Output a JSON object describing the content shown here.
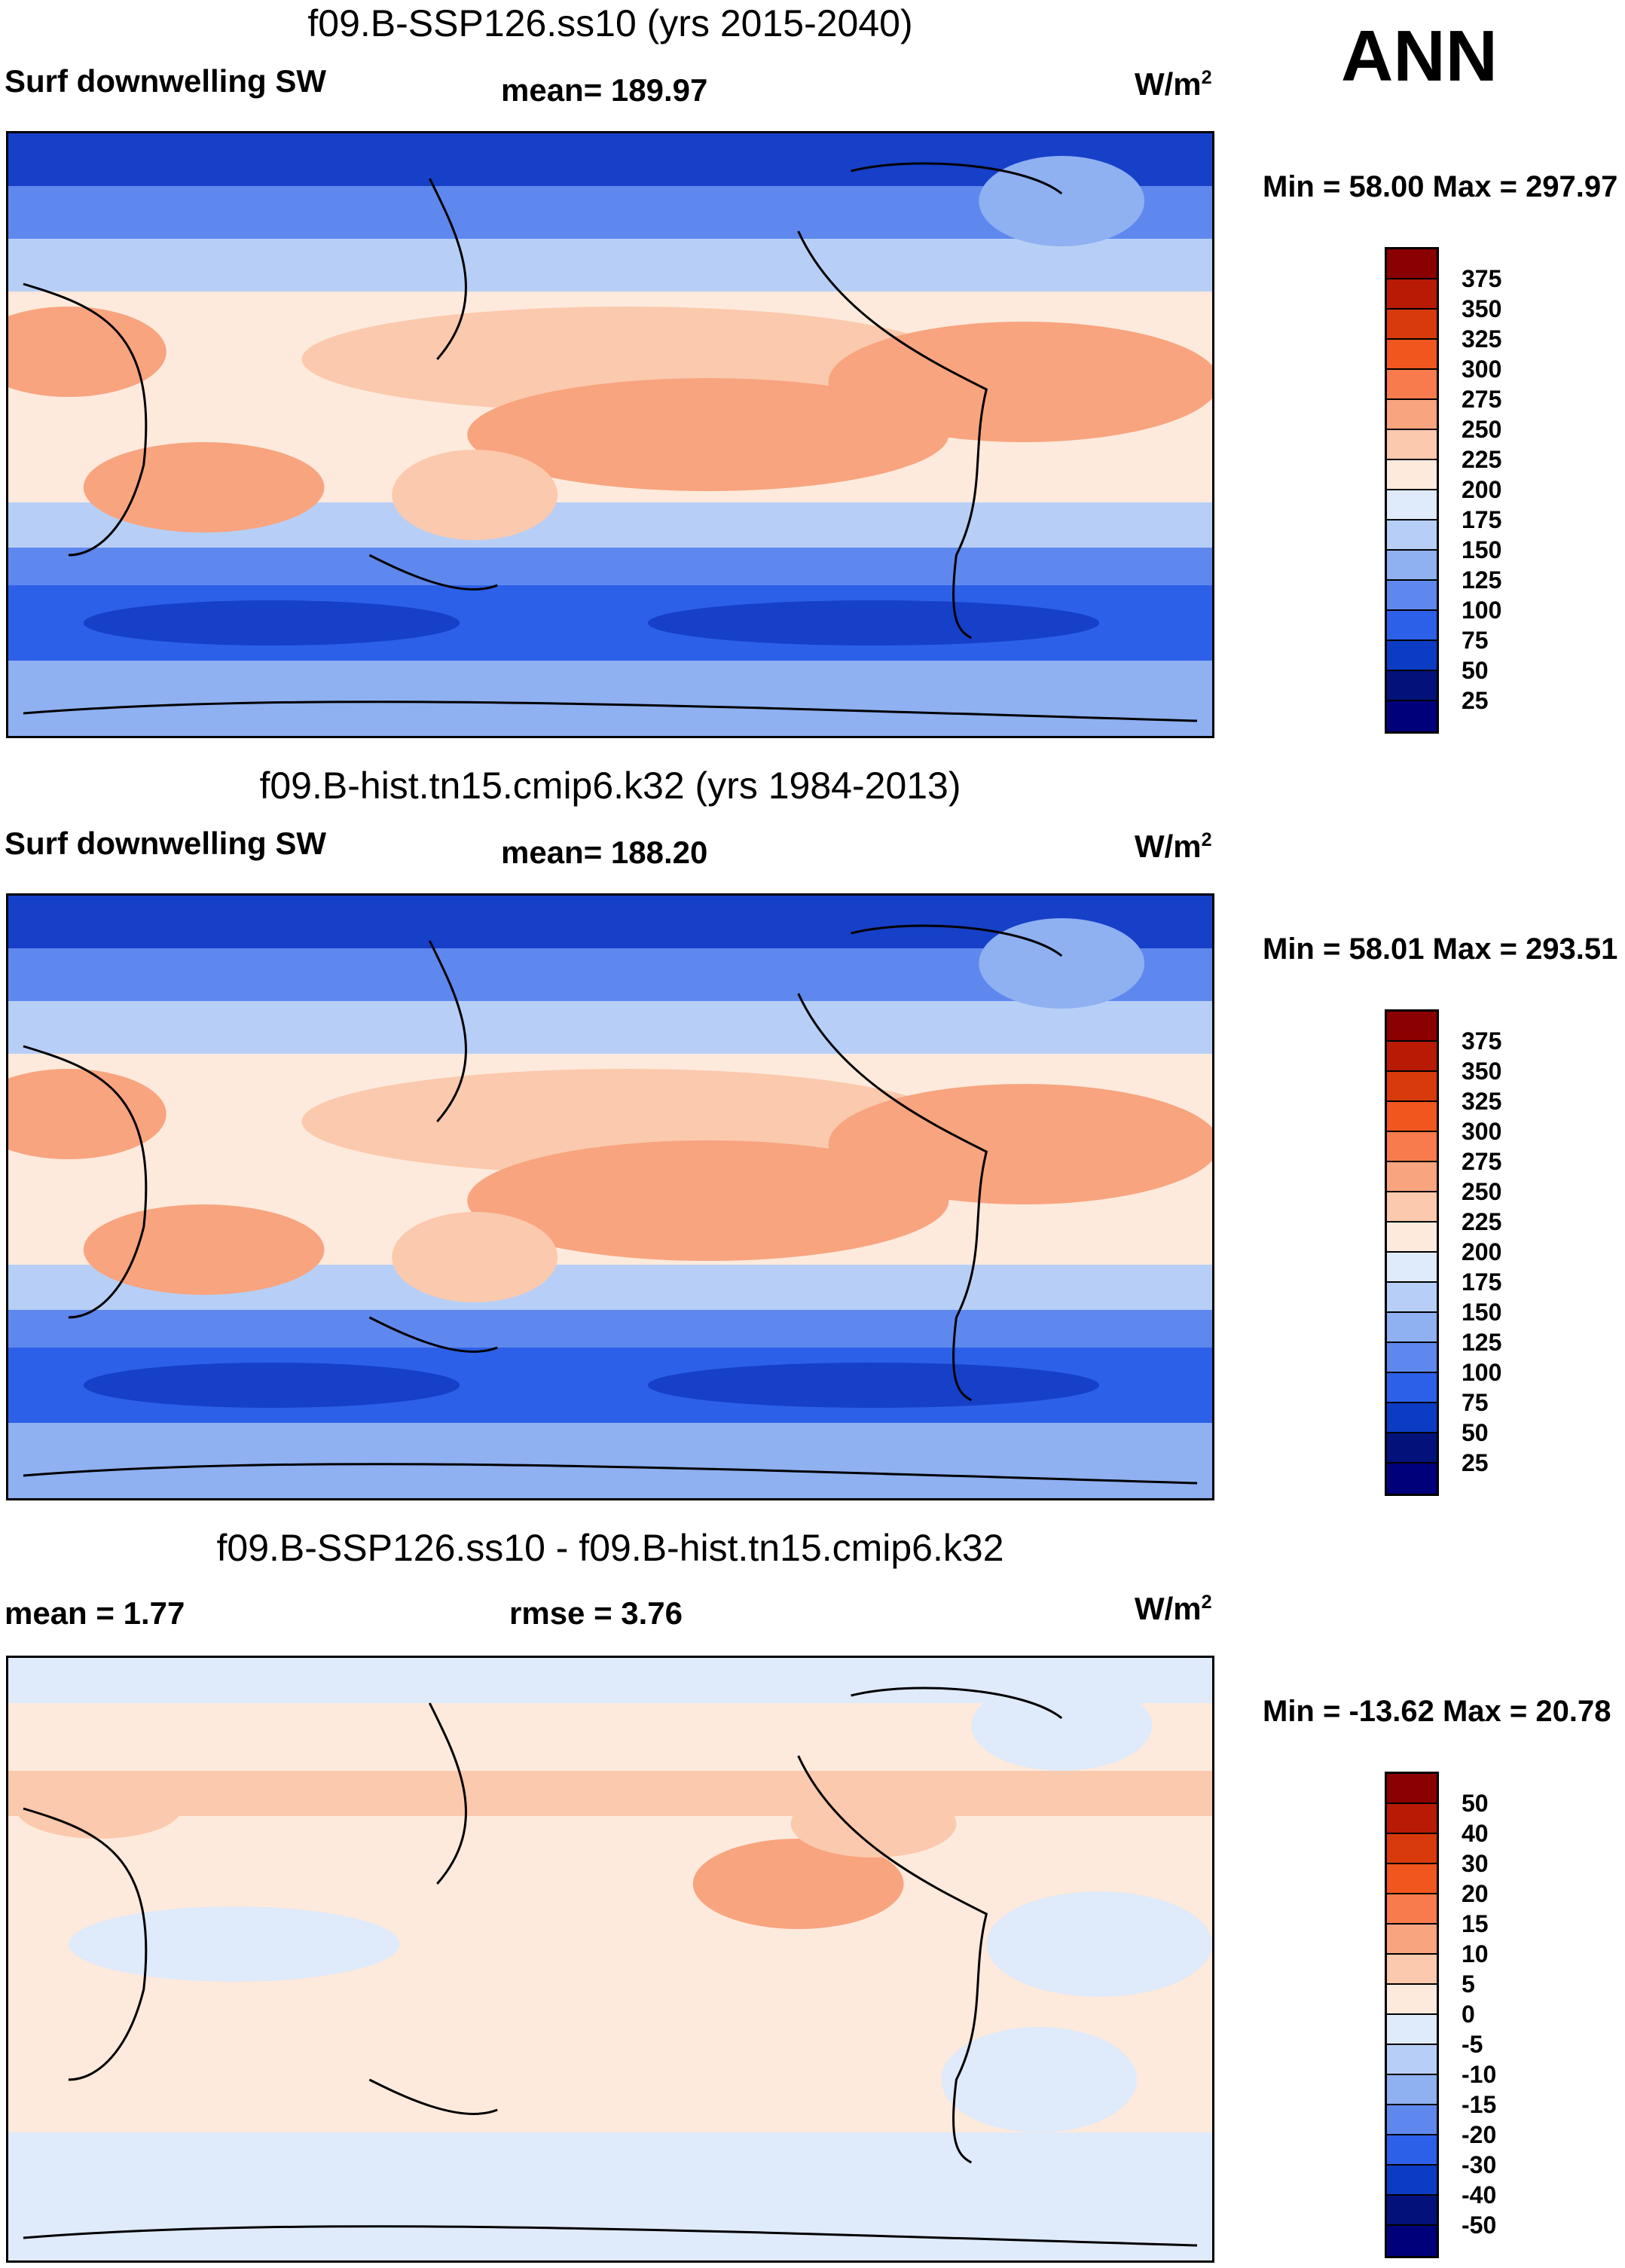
{
  "season": "ANN",
  "panels": [
    {
      "title": "f09.B-SSP126.ss10 (yrs 2015-2040)",
      "left_label": "Surf downwelling SW",
      "center_label": "mean= 189.97",
      "units": "W/m",
      "units_sup": "2",
      "minmax": "Min =  58.00 Max = 297.97",
      "colorbar": {
        "levels": [
          "375",
          "350",
          "325",
          "300",
          "275",
          "250",
          "225",
          "200",
          "175",
          "150",
          "125",
          "100",
          "75",
          "50",
          "25"
        ],
        "colors": [
          "#8b0000",
          "#b81a05",
          "#d93a0c",
          "#f0561d",
          "#f77b4c",
          "#f8a47f",
          "#fbc9ad",
          "#fdeadc",
          "#dfeafa",
          "#b7cff6",
          "#8fb0f1",
          "#5f88ee",
          "#2d60e8",
          "#0d3cc4",
          "#03127a",
          "#00007a"
        ]
      },
      "map_legend_names": {
        "ocean_cold": "#2a5ee8",
        "ocean_mid": "#6a93ef",
        "warm": "#f8b395",
        "hot": "#f78c62"
      }
    },
    {
      "title": "f09.B-hist.tn15.cmip6.k32 (yrs 1984-2013)",
      "left_label": "Surf downwelling SW",
      "center_label": "mean= 188.20",
      "units": "W/m",
      "units_sup": "2",
      "minmax": "Min =  58.01 Max = 293.51",
      "colorbar": {
        "levels": [
          "375",
          "350",
          "325",
          "300",
          "275",
          "250",
          "225",
          "200",
          "175",
          "150",
          "125",
          "100",
          "75",
          "50",
          "25"
        ],
        "colors": [
          "#8b0000",
          "#b81a05",
          "#d93a0c",
          "#f0561d",
          "#f77b4c",
          "#f8a47f",
          "#fbc9ad",
          "#fdeadc",
          "#dfeafa",
          "#b7cff6",
          "#8fb0f1",
          "#5f88ee",
          "#2d60e8",
          "#0d3cc4",
          "#03127a",
          "#00007a"
        ]
      }
    },
    {
      "title": "f09.B-SSP126.ss10 - f09.B-hist.tn15.cmip6.k32",
      "left_label": "mean =   1.77",
      "center_label": "rmse =   3.76",
      "units": "W/m",
      "units_sup": "2",
      "minmax": "Min = -13.62 Max =  20.78",
      "colorbar": {
        "levels": [
          "50",
          "40",
          "30",
          "20",
          "15",
          "10",
          "5",
          "0",
          "-5",
          "-10",
          "-15",
          "-20",
          "-30",
          "-40",
          "-50"
        ],
        "colors": [
          "#8b0000",
          "#b81a05",
          "#d93a0c",
          "#f0561d",
          "#f77b4c",
          "#f8a47f",
          "#fbc9ad",
          "#fdeadc",
          "#dfeafa",
          "#b7cff6",
          "#8fb0f1",
          "#5f88ee",
          "#2d60e8",
          "#0d3cc4",
          "#03127a",
          "#00007a"
        ]
      }
    }
  ]
}
